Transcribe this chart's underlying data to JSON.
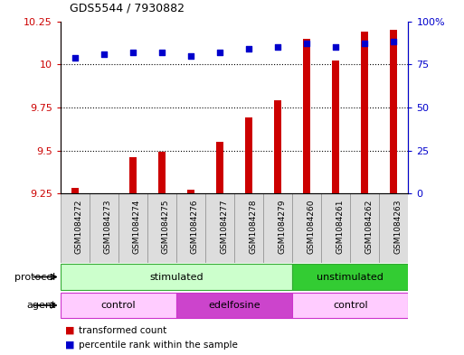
{
  "title": "GDS5544 / 7930882",
  "samples": [
    "GSM1084272",
    "GSM1084273",
    "GSM1084274",
    "GSM1084275",
    "GSM1084276",
    "GSM1084277",
    "GSM1084278",
    "GSM1084279",
    "GSM1084260",
    "GSM1084261",
    "GSM1084262",
    "GSM1084263"
  ],
  "bar_values": [
    9.28,
    9.25,
    9.46,
    9.49,
    9.27,
    9.55,
    9.69,
    9.79,
    10.15,
    10.02,
    10.19,
    10.2
  ],
  "dot_values": [
    79,
    81,
    82,
    82,
    80,
    82,
    84,
    85,
    87,
    85,
    87,
    88
  ],
  "bar_color": "#cc0000",
  "dot_color": "#0000cc",
  "ylim_left": [
    9.25,
    10.25
  ],
  "ylim_right": [
    0,
    100
  ],
  "yticks_left": [
    9.25,
    9.5,
    9.75,
    10.0,
    10.25
  ],
  "yticks_right": [
    0,
    25,
    50,
    75,
    100
  ],
  "ytick_labels_left": [
    "9.25",
    "9.5",
    "9.75",
    "10",
    "10.25"
  ],
  "ytick_labels_right": [
    "0",
    "25",
    "50",
    "75",
    "100%"
  ],
  "protocol_groups": [
    {
      "label": "stimulated",
      "start": 0,
      "end": 8,
      "color": "#ccffcc",
      "border_color": "#33aa33"
    },
    {
      "label": "unstimulated",
      "start": 8,
      "end": 12,
      "color": "#33cc33",
      "border_color": "#33aa33"
    }
  ],
  "agent_groups": [
    {
      "label": "control",
      "start": 0,
      "end": 4,
      "color": "#ffccff",
      "border_color": "#cc33cc"
    },
    {
      "label": "edelfosine",
      "start": 4,
      "end": 8,
      "color": "#cc44cc",
      "border_color": "#cc33cc"
    },
    {
      "label": "control",
      "start": 8,
      "end": 12,
      "color": "#ffccff",
      "border_color": "#cc33cc"
    }
  ],
  "legend_items": [
    {
      "label": "transformed count",
      "color": "#cc0000"
    },
    {
      "label": "percentile rank within the sample",
      "color": "#0000cc"
    }
  ],
  "background_color": "#ffffff",
  "bar_width": 0.25
}
